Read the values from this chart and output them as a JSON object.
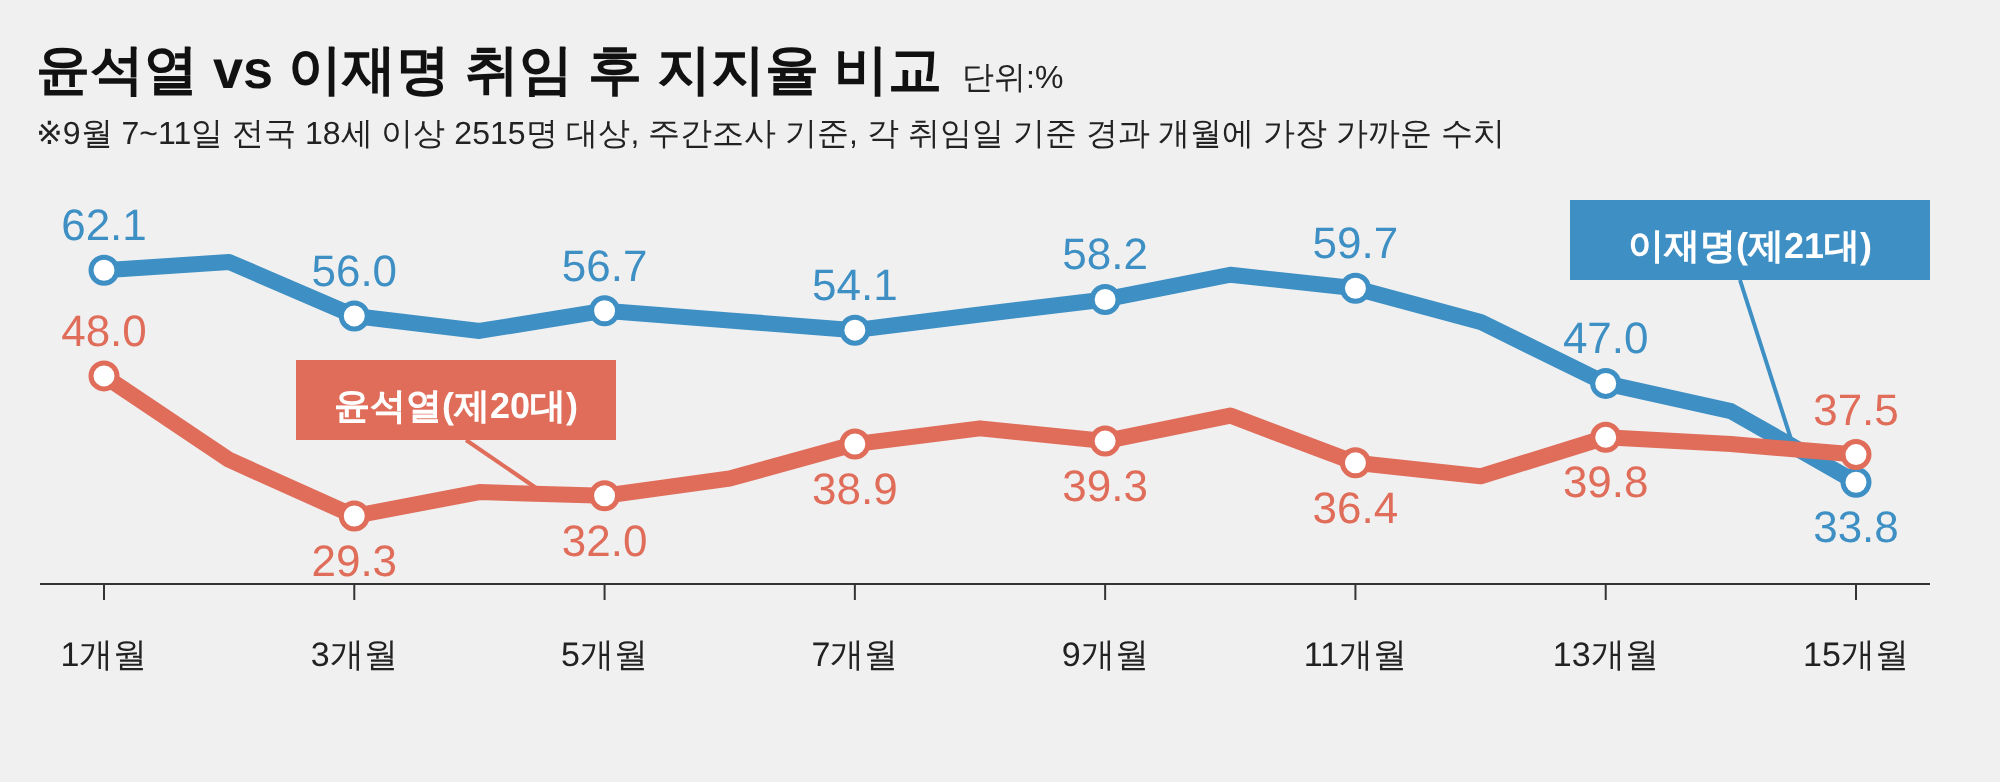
{
  "chart_data": {
    "type": "line",
    "title": "윤석열 vs 이재명 취임 후 지지율 비교",
    "subtitle": "※9월 7~11일 전국 18세 이상 2515명 대상, 주간조사 기준, 각 취임일 기준 경과 개월에 가장 가까운 수치",
    "annotations": [
      "단위:%"
    ],
    "categories": [
      "1개월",
      null,
      "3개월",
      null,
      "5개월",
      null,
      "7개월",
      null,
      "9개월",
      null,
      "11개월",
      null,
      "13개월",
      null,
      "15개월"
    ],
    "legend": false,
    "grid": false,
    "marker": "circle",
    "line_style": "solid",
    "tick_labels": "x",
    "series": [
      {
        "name": "이재명(제21대)",
        "color": "#3d8fc4",
        "values": [
          62.1,
          63.2,
          56.0,
          54.0,
          56.7,
          55.4,
          54.1,
          56.2,
          58.2,
          61.5,
          59.7,
          55.2,
          47.0,
          43.3,
          33.8
        ],
        "value_labels": [
          "62.1",
          null,
          "56.0",
          null,
          "56.7",
          null,
          "54.1",
          null,
          "58.2",
          null,
          "59.7",
          null,
          "47.0",
          null,
          "33.8"
        ]
      },
      {
        "name": "윤석열(제20대)",
        "color": "#e06c5a",
        "values": [
          48.0,
          36.8,
          29.3,
          32.5,
          32.0,
          34.3,
          38.9,
          41.0,
          39.3,
          42.7,
          36.4,
          34.6,
          39.8,
          38.9,
          37.5
        ],
        "value_labels": [
          "48.0",
          null,
          "29.3",
          null,
          "32.0",
          null,
          "38.9",
          null,
          "39.3",
          null,
          "36.4",
          null,
          "39.8",
          null,
          "37.5"
        ]
      }
    ]
  }
}
